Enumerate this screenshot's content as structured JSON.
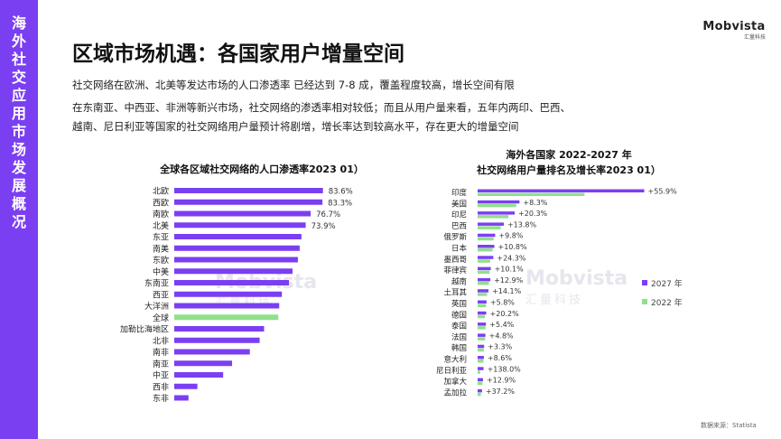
{
  "sidebar": {
    "title": "海外社交应用市场发展概况"
  },
  "logo": {
    "main": "Mobvista",
    "sub": "汇量科技"
  },
  "page": {
    "title": "区域市场机遇：各国家用户增量空间",
    "paragraph1": "社交网络在欧洲、北美等发达市场的人口渗透率 已经达到 7-8 成，覆盖程度较高，增长空间有限",
    "paragraph2_line1": "在东南亚、中西亚、非洲等新兴市场，社交网络的渗透率相对较低；而且从用户量来看，五年内两印、巴西、",
    "paragraph2_line2": "越南、尼日利亚等国家的社交网络用户量预计将剧增，增长率达到较高水平，存在更大的增量空间"
  },
  "watermark": {
    "main": "Mobvista",
    "sub": "汇量科技"
  },
  "source": "数据来源：Statista",
  "colors": {
    "purple": "#7b3ff2",
    "green": "#90e08c",
    "sidebar": "#7b3ff2"
  },
  "chart_data": [
    {
      "type": "bar",
      "orientation": "horizontal",
      "title": "全球各区域社交网络的人口渗透率2023 01）",
      "categories": [
        "北欧",
        "西欧",
        "南欧",
        "北美",
        "东亚",
        "南美",
        "东欧",
        "中美",
        "东南亚",
        "西亚",
        "大洋洲",
        "全球",
        "加勒比海地区",
        "北非",
        "南非",
        "南亚",
        "中亚",
        "西非",
        "东非"
      ],
      "values": [
        83.6,
        83.3,
        76.7,
        73.9,
        71.5,
        70.5,
        69.5,
        66.5,
        64.5,
        60.5,
        59.0,
        58.5,
        50.5,
        48.0,
        42.5,
        32.5,
        27.5,
        13.0,
        8.0
      ],
      "value_labels": [
        "83.6%",
        "83.3%",
        "76.7%",
        "73.9%",
        "",
        "",
        "",
        "",
        "",
        "",
        "",
        "",
        "",
        "",
        "",
        "",
        "",
        "",
        ""
      ],
      "highlight": "全球",
      "xlim": [
        0,
        100
      ],
      "grid": false,
      "legend": "none"
    },
    {
      "type": "bar",
      "orientation": "horizontal",
      "title_line1": "海外各国家 2022-2027 年",
      "title_line2": "社交网络用户量排名及增长率2023 01）",
      "categories": [
        "印度",
        "美国",
        "印尼",
        "巴西",
        "俄罗斯",
        "日本",
        "墨西哥",
        "菲律宾",
        "越南",
        "土耳其",
        "英国",
        "德国",
        "泰国",
        "法国",
        "韩国",
        "意大利",
        "尼日利亚",
        "加拿大",
        "孟加拉"
      ],
      "series": [
        {
          "name": "2027 年",
          "values": [
            1178,
            296,
            262,
            185,
            124,
            118,
            111,
            93,
            90,
            77,
            63,
            61,
            59,
            55,
            46,
            44,
            42,
            38,
            31
          ]
        },
        {
          "name": "2022 年",
          "values": [
            756,
            273,
            218,
            163,
            113,
            106,
            89,
            85,
            80,
            67,
            59,
            51,
            56,
            53,
            44,
            41,
            18,
            34,
            23
          ]
        }
      ],
      "growth_labels": [
        "+55.9%",
        "+8.3%",
        "+20.3%",
        "+13.8%",
        "+9.8%",
        "+10.8%",
        "+24.3%",
        "+10.1%",
        "+12.9%",
        "+14.1%",
        "+5.8%",
        "+20.2%",
        "+5.4%",
        "+4.8%",
        "+3.3%",
        "+8.6%",
        "+138.0%",
        "+12.9%",
        "+37.2%"
      ],
      "legend": "right"
    }
  ]
}
